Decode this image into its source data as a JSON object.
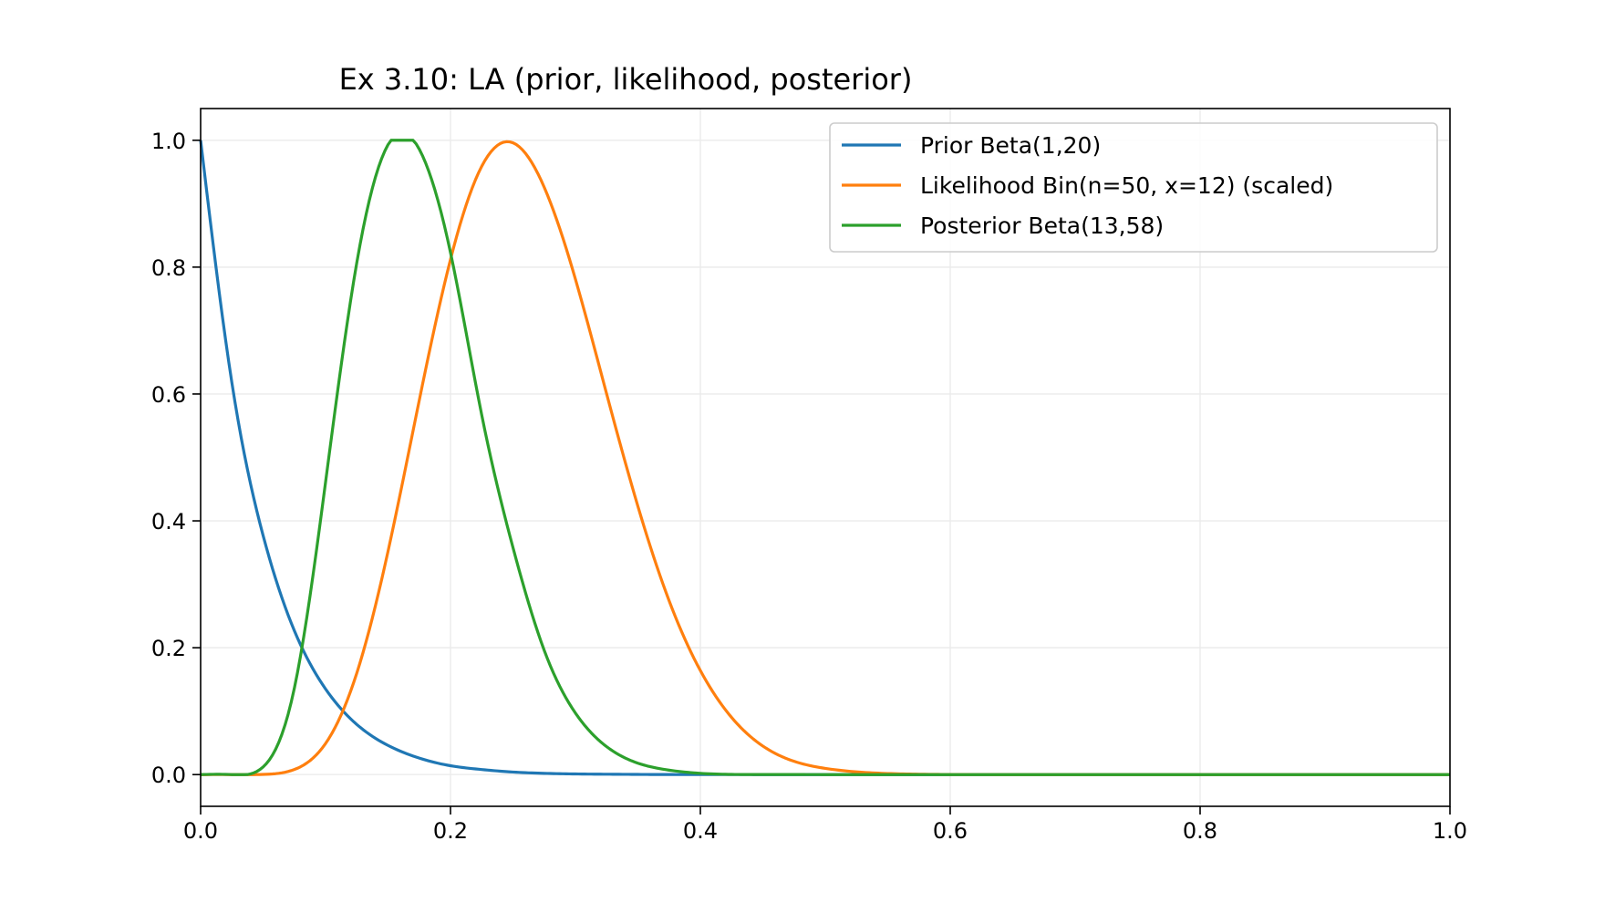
{
  "chart_data": {
    "type": "line",
    "title": "Ex 3.10: LA (prior, likelihood, posterior)",
    "xlabel": "",
    "ylabel": "",
    "xlim": [
      0.0,
      1.0
    ],
    "ylim": [
      -0.05,
      1.05
    ],
    "grid": true,
    "legend_placement": "upper-right",
    "xticks": [
      {
        "value": 0.0,
        "label": "0.0"
      },
      {
        "value": 0.2,
        "label": "0.2"
      },
      {
        "value": 0.4,
        "label": "0.4"
      },
      {
        "value": 0.6,
        "label": "0.6"
      },
      {
        "value": 0.8,
        "label": "0.8"
      },
      {
        "value": 1.0,
        "label": "1.0"
      }
    ],
    "yticks": [
      {
        "value": 0.0,
        "label": "0.0"
      },
      {
        "value": 0.2,
        "label": "0.2"
      },
      {
        "value": 0.4,
        "label": "0.4"
      },
      {
        "value": 0.6,
        "label": "0.6"
      },
      {
        "value": 0.8,
        "label": "0.8"
      },
      {
        "value": 1.0,
        "label": "1.0"
      }
    ],
    "x": [
      0.0,
      0.025,
      0.05,
      0.075,
      0.1,
      0.125,
      0.15,
      0.175,
      0.2,
      0.225,
      0.25,
      0.275,
      0.3,
      0.325,
      0.35,
      0.375,
      0.4,
      0.45,
      0.5,
      0.55,
      0.6,
      0.7,
      0.8,
      0.9,
      1.0
    ],
    "series": [
      {
        "name": "Prior Beta(1,20)",
        "color": "#1f77b4",
        "values": [
          1.0,
          0.618,
          0.377,
          0.227,
          0.135,
          0.079,
          0.046,
          0.026,
          0.014,
          0.008,
          0.004,
          0.002,
          0.001,
          0.0006,
          0.0003,
          0.0001,
          0.0001,
          0.0,
          0.0,
          0.0,
          0.0,
          0.0,
          0.0,
          0.0,
          0.0
        ]
      },
      {
        "name": "Likelihood Bin(n=50, x=12) (scaled)",
        "color": "#ff7f0e",
        "values": [
          0.0,
          0.0,
          0.0003,
          0.008,
          0.049,
          0.16,
          0.352,
          0.59,
          0.812,
          0.959,
          0.996,
          0.926,
          0.781,
          0.6,
          0.423,
          0.274,
          0.164,
          0.045,
          0.0098,
          0.0017,
          0.0002,
          0.0,
          0.0,
          0.0,
          0.0
        ]
      },
      {
        "name": "Posterior Beta(13,58)",
        "color": "#2ca02c",
        "values": [
          0.0,
          0.0,
          0.012,
          0.136,
          0.461,
          0.807,
          0.993,
          0.986,
          0.823,
          0.567,
          0.358,
          0.196,
          0.097,
          0.044,
          0.018,
          0.007,
          0.002,
          0.0002,
          0.0,
          0.0,
          0.0,
          0.0,
          0.0,
          0.0,
          0.0
        ]
      }
    ]
  }
}
